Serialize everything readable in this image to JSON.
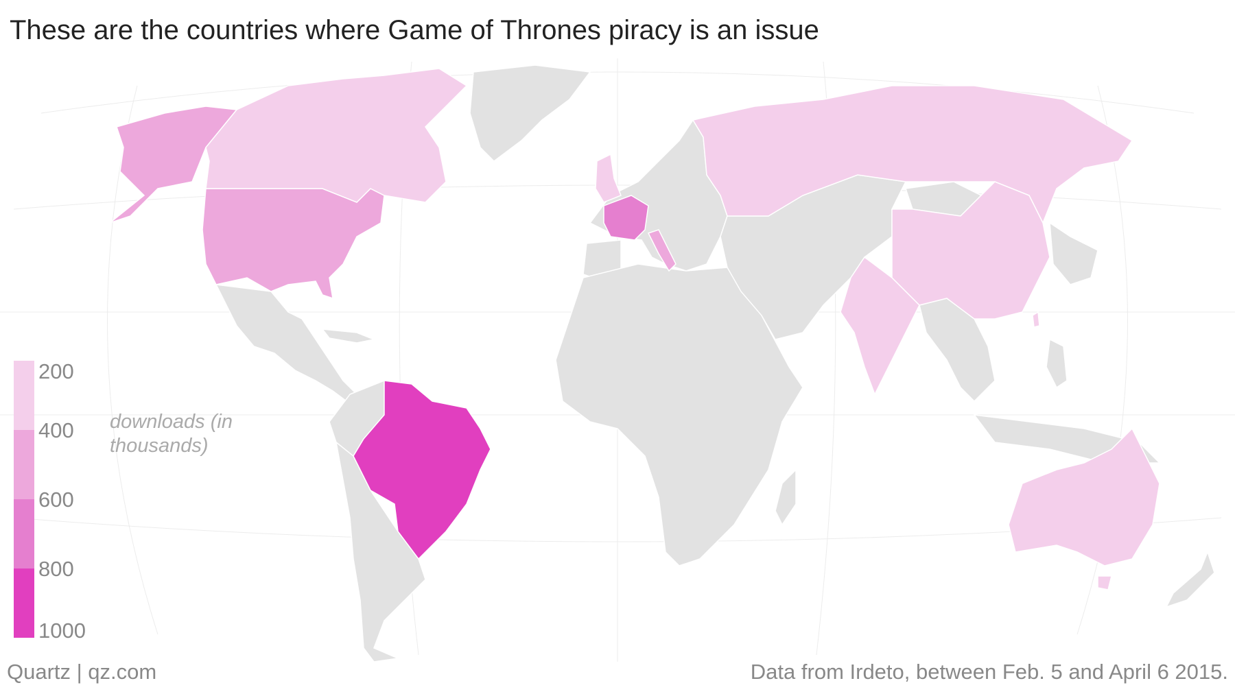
{
  "title": "These are the countries where Game of Thrones piracy is an issue",
  "legend": {
    "title": "downloads (in thousands)",
    "labels": [
      "200",
      "400",
      "600",
      "800",
      "1000"
    ],
    "colors": [
      "#f4cfeb",
      "#eda8dc",
      "#e57fcf",
      "#e13fbf"
    ]
  },
  "chart_data": {
    "type": "choropleth",
    "value_unit": "downloads (in thousands)",
    "scale_ticks": [
      200,
      400,
      600,
      800,
      1000
    ],
    "regions": [
      {
        "name": "Brazil",
        "bin": [
          800,
          1000
        ]
      },
      {
        "name": "France",
        "bin": [
          600,
          800
        ]
      },
      {
        "name": "United States",
        "bin": [
          400,
          600
        ]
      },
      {
        "name": "Italy",
        "bin": [
          400,
          600
        ]
      },
      {
        "name": "Canada",
        "bin": [
          200,
          400
        ]
      },
      {
        "name": "United Kingdom",
        "bin": [
          200,
          400
        ]
      },
      {
        "name": "Russia",
        "bin": [
          200,
          400
        ]
      },
      {
        "name": "China",
        "bin": [
          200,
          400
        ]
      },
      {
        "name": "India",
        "bin": [
          200,
          400
        ]
      },
      {
        "name": "Australia",
        "bin": [
          200,
          400
        ]
      },
      {
        "name": "Taiwan",
        "bin": [
          200,
          400
        ]
      }
    ]
  },
  "footer": {
    "source_brand": "Quartz | qz.com",
    "note": "Data from Irdeto, between Feb. 5 and April 6 2015."
  }
}
